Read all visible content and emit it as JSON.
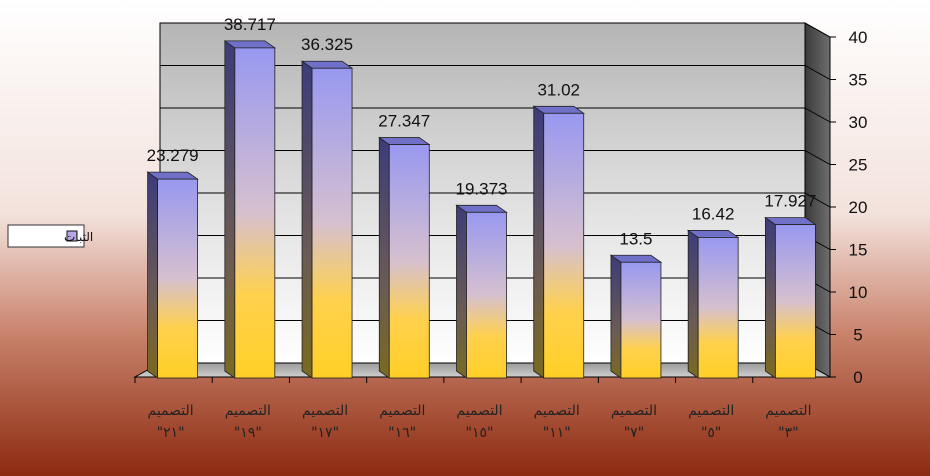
{
  "chart_data": {
    "type": "bar",
    "style": "3d-column",
    "categories": [
      [
        "التصميم",
        "\"٢١\""
      ],
      [
        "التصميم",
        "\"١٩\""
      ],
      [
        "التصميم",
        "\"١٧\""
      ],
      [
        "التصميم",
        "\"١٦\""
      ],
      [
        "التصميم",
        "\"١٥\""
      ],
      [
        "التصميم",
        "\"١١\""
      ],
      [
        "التصميم",
        "\"٧\""
      ],
      [
        "التصميم",
        "\"٥\""
      ],
      [
        "التصميم",
        "\"٣\""
      ]
    ],
    "series": [
      {
        "name": "الثبات",
        "values": [
          23.279,
          38.717,
          36.325,
          27.347,
          19.373,
          31.02,
          13.5,
          16.42,
          17.927
        ],
        "labels": [
          "23.279",
          "38.717",
          "36.325",
          "27.347",
          "19.373",
          "31.02",
          "13.5",
          "16.42",
          "17.927"
        ]
      }
    ],
    "y_ticks": [
      "0",
      "5",
      "10",
      "15",
      "20",
      "25",
      "30",
      "35",
      "40"
    ],
    "ylim": [
      0,
      40
    ],
    "y_axis_side": "right",
    "grid": true,
    "legend": "left",
    "colors": {
      "bar_top": "#9a9af2",
      "bar_bottom": "#ffd633",
      "wall_top": "#b8b8b8",
      "wall_bottom": "#ffffff",
      "bg_top": "#ffffff",
      "bg_bottom": "#8c2a10"
    }
  }
}
